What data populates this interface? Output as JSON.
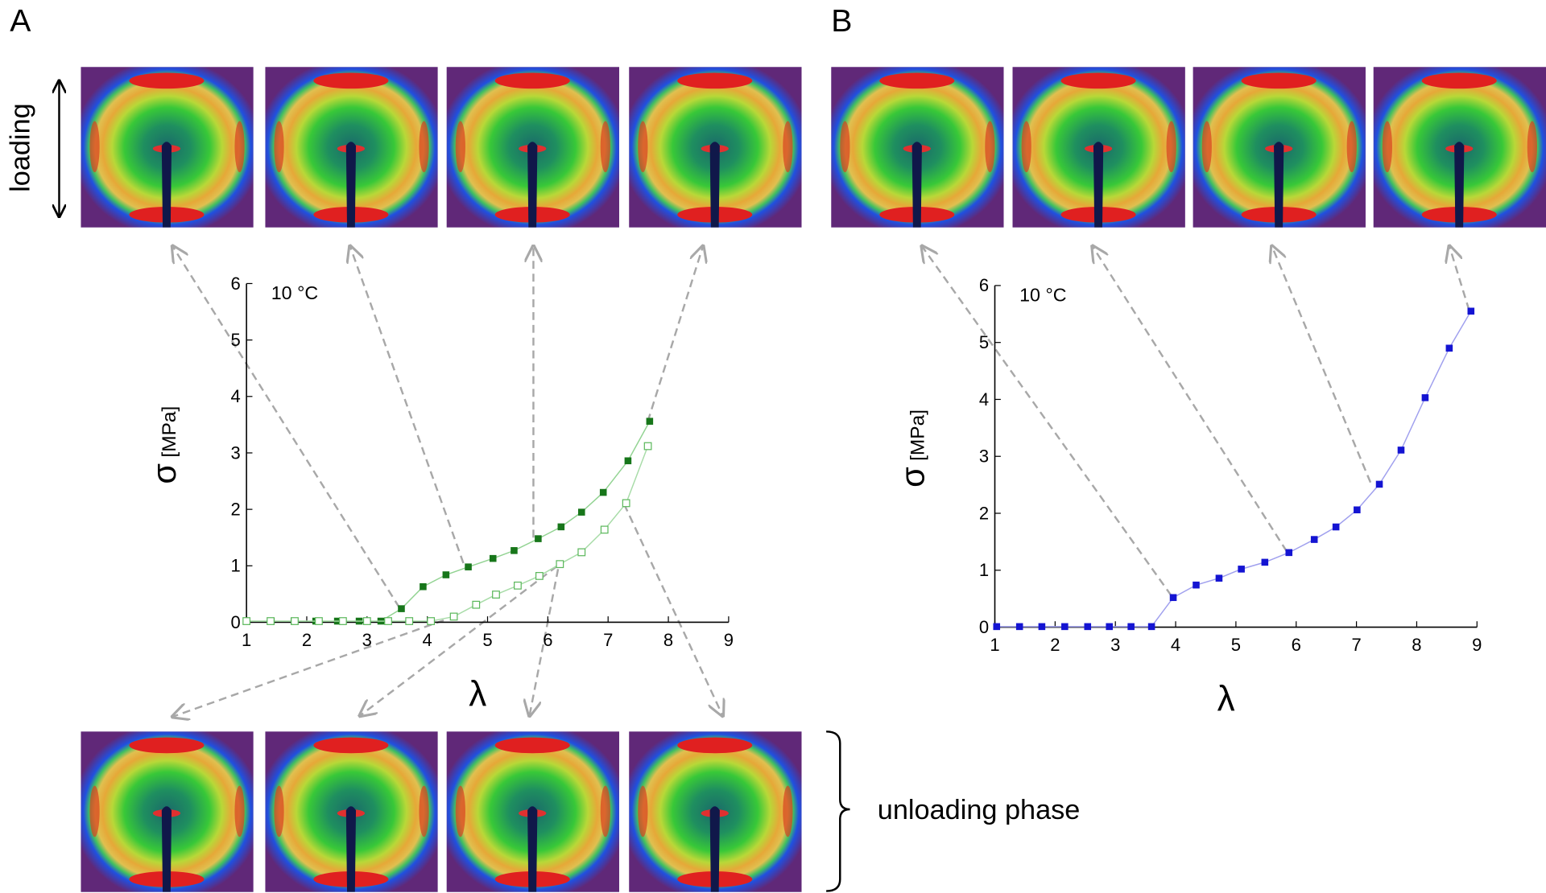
{
  "figure": {
    "panel_labels": [
      "A",
      "B"
    ],
    "loading_label": "loading",
    "unloading_label": "unloading phase"
  },
  "chart_data": [
    {
      "type": "line",
      "annotation": "10 °C",
      "y_label": "σ",
      "y_label_unit": "[MPa]",
      "x_label": "λ",
      "xlim": [
        1,
        9
      ],
      "xticks": [
        1,
        2,
        3,
        4,
        5,
        6,
        7,
        8,
        9
      ],
      "ylim": [
        0,
        6
      ],
      "yticks": [
        0,
        1,
        2,
        3,
        4,
        5,
        6
      ],
      "series": [
        {
          "marker": "filled",
          "color": "#17761a",
          "line_color": "#92d392",
          "x": [
            1,
            1.41,
            1.79,
            2.15,
            2.51,
            2.87,
            3.23,
            3.57,
            3.93,
            4.31,
            4.68,
            5.09,
            5.44,
            5.84,
            6.22,
            6.56,
            6.92,
            7.33,
            7.69
          ],
          "values": [
            0.02,
            0.02,
            0.02,
            0.02,
            0.02,
            0.02,
            0.02,
            0.24,
            0.63,
            0.84,
            0.98,
            1.13,
            1.27,
            1.48,
            1.69,
            1.95,
            2.3,
            2.86,
            3.56
          ]
        },
        {
          "marker": "open",
          "color": "#5cb85c",
          "line_color": "#a8dca8",
          "x": [
            1,
            1.4,
            1.8,
            2.2,
            2.6,
            3,
            3.35,
            3.7,
            4.06,
            4.44,
            4.81,
            5.14,
            5.5,
            5.86,
            6.2,
            6.56,
            6.94,
            7.3,
            7.66
          ],
          "values": [
            0.02,
            0.02,
            0.02,
            0.02,
            0.02,
            0.02,
            0.02,
            0.02,
            0.02,
            0.1,
            0.31,
            0.49,
            0.65,
            0.82,
            1.03,
            1.24,
            1.64,
            2.11,
            3.12
          ]
        }
      ]
    },
    {
      "type": "line",
      "annotation": "10 °C",
      "y_label": "σ",
      "y_label_unit": "[MPa]",
      "x_label": "λ",
      "xlim": [
        1,
        9
      ],
      "xticks": [
        1,
        2,
        3,
        4,
        5,
        6,
        7,
        8,
        9
      ],
      "ylim": [
        0,
        6
      ],
      "yticks": [
        0,
        1,
        2,
        3,
        4,
        5,
        6
      ],
      "series": [
        {
          "marker": "filled",
          "color": "#1414d2",
          "line_color": "#a0a0ee",
          "x": [
            1.03,
            1.41,
            1.78,
            2.16,
            2.54,
            2.9,
            3.26,
            3.6,
            3.96,
            4.34,
            4.72,
            5.09,
            5.48,
            5.88,
            6.3,
            6.66,
            7.01,
            7.38,
            7.74,
            8.14,
            8.54,
            8.9
          ],
          "values": [
            0.01,
            0.01,
            0.01,
            0.01,
            0.01,
            0.01,
            0.01,
            0.01,
            0.52,
            0.74,
            0.86,
            1.02,
            1.14,
            1.31,
            1.54,
            1.76,
            2.06,
            2.51,
            3.11,
            4.03,
            4.9,
            5.55
          ]
        }
      ]
    }
  ]
}
